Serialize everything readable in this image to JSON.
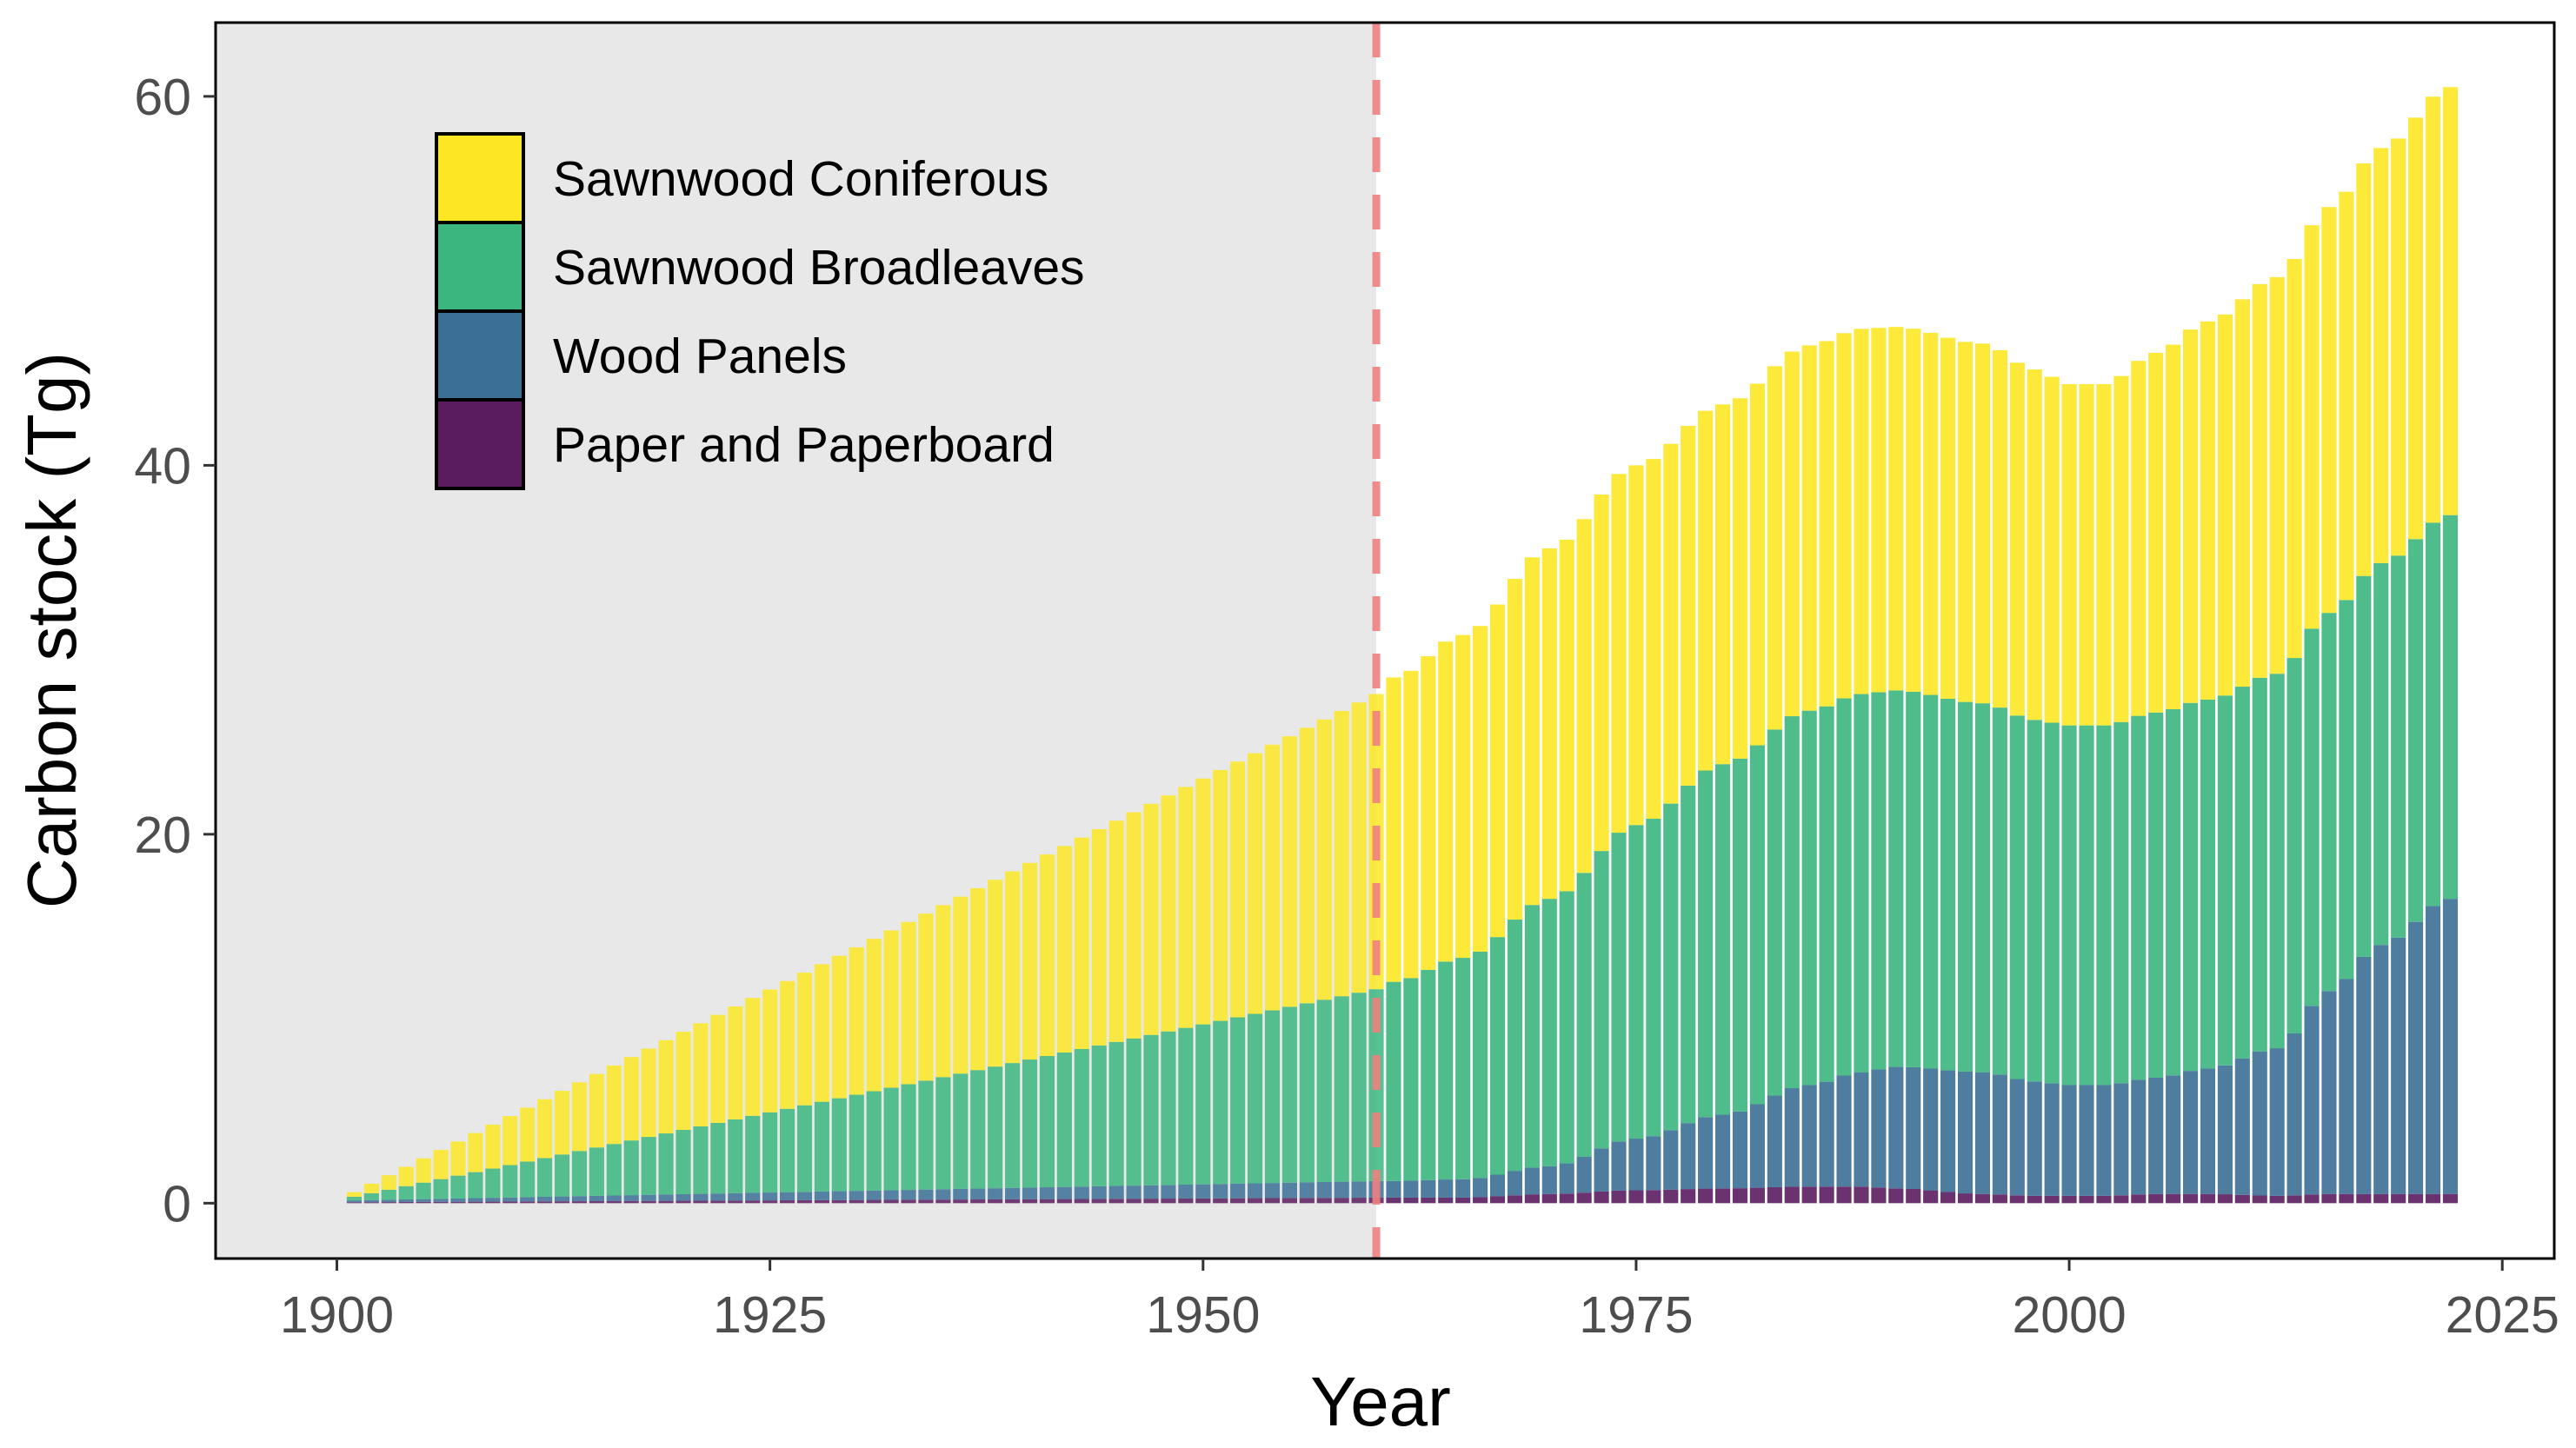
{
  "chart_data": {
    "type": "bar",
    "stacked": true,
    "xlabel": "Year",
    "ylabel": "Carbon stock (Tg)",
    "xlim": [
      1893,
      2028
    ],
    "ylim": [
      -3,
      64
    ],
    "xticks": [
      "1900",
      "1925",
      "1950",
      "1975",
      "2000",
      "2025"
    ],
    "yticks": [
      "0",
      "20",
      "40",
      "60"
    ],
    "legend_position": "top-left inside",
    "grid": false,
    "shaded_region": {
      "from": 1893,
      "to": 1960,
      "color": "#e8e8e8"
    },
    "vline": {
      "x": 1960,
      "color": "#f08080",
      "style": "dashed"
    },
    "series_order_bottom_to_top": [
      "Paper and Paperboard",
      "Wood Panels",
      "Sawnwood Broadleaves",
      "Sawnwood Coniferous"
    ],
    "series": [
      {
        "name": "Sawnwood Coniferous",
        "color": "#fde725",
        "keyframes": [
          [
            1901,
            0.25
          ],
          [
            1960,
            16.0
          ],
          [
            1961,
            16.5
          ],
          [
            1965,
            17.5
          ],
          [
            1970,
            19.0
          ],
          [
            1975,
            19.5
          ],
          [
            1980,
            19.5
          ],
          [
            1985,
            19.8
          ],
          [
            1988,
            19.8
          ],
          [
            1990,
            19.7
          ],
          [
            1995,
            19.5
          ],
          [
            1998,
            19.0
          ],
          [
            2000,
            18.5
          ],
          [
            2002,
            18.5
          ],
          [
            2005,
            19.5
          ],
          [
            2008,
            20.5
          ],
          [
            2012,
            21.5
          ],
          [
            2015,
            22.0
          ],
          [
            2018,
            22.5
          ],
          [
            2022,
            23.2
          ]
        ]
      },
      {
        "name": "Sawnwood Broadleaves",
        "color": "#3bb67e",
        "keyframes": [
          [
            1901,
            0.2
          ],
          [
            1960,
            10.4
          ],
          [
            1961,
            10.8
          ],
          [
            1965,
            12.0
          ],
          [
            1970,
            14.5
          ],
          [
            1975,
            17.0
          ],
          [
            1980,
            19.0
          ],
          [
            1985,
            20.3
          ],
          [
            1988,
            20.5
          ],
          [
            1990,
            20.4
          ],
          [
            1995,
            20.0
          ],
          [
            1998,
            19.6
          ],
          [
            2000,
            19.5
          ],
          [
            2002,
            19.5
          ],
          [
            2005,
            19.8
          ],
          [
            2008,
            20.0
          ],
          [
            2012,
            20.3
          ],
          [
            2015,
            20.5
          ],
          [
            2018,
            20.7
          ],
          [
            2022,
            20.8
          ]
        ]
      },
      {
        "name": "Wood Panels",
        "color": "#3b6f96",
        "keyframes": [
          [
            1901,
            0.1
          ],
          [
            1960,
            0.9
          ],
          [
            1961,
            0.9
          ],
          [
            1965,
            1.0
          ],
          [
            1970,
            1.5
          ],
          [
            1975,
            2.8
          ],
          [
            1980,
            4.0
          ],
          [
            1985,
            5.5
          ],
          [
            1988,
            6.2
          ],
          [
            1990,
            6.6
          ],
          [
            1995,
            6.6
          ],
          [
            1998,
            6.2
          ],
          [
            2000,
            6.0
          ],
          [
            2002,
            6.0
          ],
          [
            2005,
            6.3
          ],
          [
            2008,
            6.8
          ],
          [
            2012,
            8.0
          ],
          [
            2015,
            11.0
          ],
          [
            2018,
            13.5
          ],
          [
            2022,
            16.0
          ]
        ]
      },
      {
        "name": "Paper and Paperboard",
        "color": "#5a1c5e",
        "keyframes": [
          [
            1901,
            0.05
          ],
          [
            1960,
            0.3
          ],
          [
            1961,
            0.3
          ],
          [
            1965,
            0.3
          ],
          [
            1970,
            0.5
          ],
          [
            1975,
            0.7
          ],
          [
            1980,
            0.8
          ],
          [
            1985,
            0.9
          ],
          [
            1988,
            0.9
          ],
          [
            1990,
            0.8
          ],
          [
            1995,
            0.5
          ],
          [
            1998,
            0.4
          ],
          [
            2000,
            0.4
          ],
          [
            2002,
            0.4
          ],
          [
            2005,
            0.5
          ],
          [
            2008,
            0.5
          ],
          [
            2012,
            0.4
          ],
          [
            2015,
            0.5
          ],
          [
            2018,
            0.5
          ],
          [
            2022,
            0.5
          ]
        ]
      }
    ]
  }
}
